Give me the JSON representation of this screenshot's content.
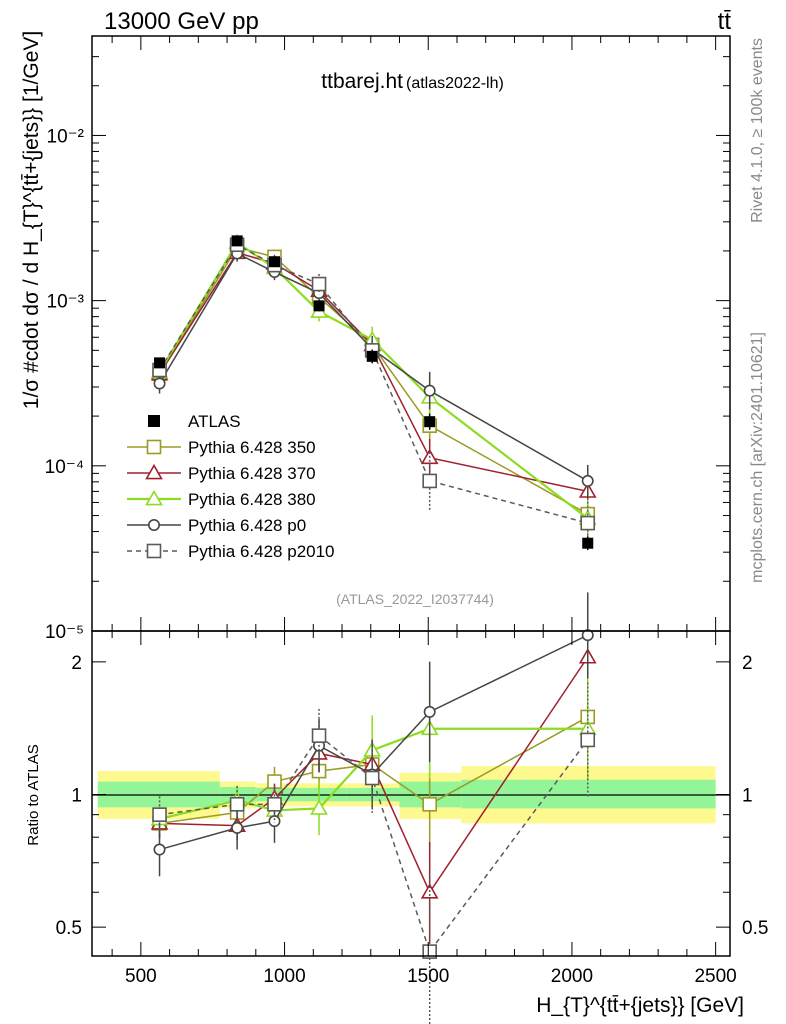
{
  "header": {
    "left": "13000 GeV pp",
    "right": "tt̄"
  },
  "side_labels": {
    "rivet": "Rivet 4.1.0, ≥ 100k events",
    "mcplots": "mcplots.cern.ch [arXiv:2401.10621]"
  },
  "chart_data": {
    "type": "line",
    "title": "ttbarej.ht",
    "subtitle": "(atlas2022-lh)",
    "watermark": "(ATLAS_2022_I2037744)",
    "ylabel_main": "1/σ #cdot dσ / d H_{T}^{tt̄+{jets}} [1/GeV]",
    "ylabel_ratio": "Ratio to ATLAS",
    "xlabel": "H_{T}^{tt̄+{jets}} [GeV]",
    "x_range": [
      330,
      2550
    ],
    "x_ticks": [
      500,
      1000,
      1500,
      2000,
      2500
    ],
    "y_main_range": [
      1e-05,
      0.04
    ],
    "y_main_scale": "log",
    "y_main_ticks": [
      {
        "value": 1e-05,
        "label": "10⁻⁵"
      },
      {
        "value": 0.0001,
        "label": "10⁻⁴"
      },
      {
        "value": 0.001,
        "label": "10⁻³"
      },
      {
        "value": 0.01,
        "label": "10⁻²"
      }
    ],
    "y_ratio_range": [
      0.43,
      2.35
    ],
    "y_ratio_scale": "log",
    "y_ratio_ticks": [
      0.5,
      1,
      2
    ],
    "bin_edges": [
      350,
      775,
      900,
      1035,
      1215,
      1400,
      1615,
      2500
    ],
    "ratio_bands": {
      "inner": [
        [
          0.935,
          1.07
        ],
        [
          0.96,
          1.04
        ],
        [
          0.965,
          1.035
        ],
        [
          0.965,
          1.035
        ],
        [
          0.965,
          1.035
        ],
        [
          0.935,
          1.07
        ],
        [
          0.93,
          1.08
        ]
      ],
      "outer": [
        [
          0.88,
          1.13
        ],
        [
          0.93,
          1.07
        ],
        [
          0.94,
          1.06
        ],
        [
          0.94,
          1.06
        ],
        [
          0.94,
          1.06
        ],
        [
          0.88,
          1.12
        ],
        [
          0.86,
          1.16
        ]
      ]
    },
    "x": [
      565,
      835,
      965,
      1120,
      1305,
      1505,
      2055
    ],
    "series": [
      {
        "name": "ATLAS",
        "color": "#000000",
        "marker": "filled-square",
        "dashed": false,
        "values": [
          0.00042,
          0.0023,
          0.00172,
          0.00093,
          0.00046,
          0.000185,
          3.4e-05
        ],
        "errors": [
          0.06,
          0.06,
          0.06,
          0.08,
          0.1,
          0.12,
          0.1
        ]
      },
      {
        "name": "Pythia 6.428 350",
        "color": "#9b9b24",
        "marker": "open-square",
        "dashed": false,
        "values": [
          0.00036,
          0.0021,
          0.00184,
          0.00105,
          0.00054,
          0.000175,
          5.1e-05
        ],
        "errors": [
          0.08,
          0.08,
          0.08,
          0.1,
          0.15,
          0.25,
          0.3
        ],
        "ratio": [
          0.86,
          0.91,
          1.07,
          1.13,
          1.17,
          0.95,
          1.5
        ]
      },
      {
        "name": "Pythia 6.428 370",
        "color": "#a0202e",
        "marker": "open-triangle",
        "dashed": false,
        "values": [
          0.00036,
          0.00195,
          0.00168,
          0.00115,
          0.00054,
          0.000112,
          7e-05
        ],
        "errors": [
          0.08,
          0.08,
          0.08,
          0.1,
          0.15,
          0.3,
          0.3
        ],
        "ratio": [
          0.86,
          0.85,
          0.98,
          1.24,
          1.17,
          0.6,
          2.05
        ]
      },
      {
        "name": "Pythia 6.428 380",
        "color": "#8cdc20",
        "marker": "open-triangle",
        "dashed": false,
        "values": [
          0.00037,
          0.00224,
          0.00158,
          0.00086,
          0.00058,
          0.00026,
          4.8e-05
        ],
        "errors": [
          0.08,
          0.08,
          0.08,
          0.15,
          0.2,
          0.3,
          0.3
        ],
        "ratio": [
          0.88,
          0.97,
          0.92,
          0.93,
          1.26,
          1.41,
          1.41
        ]
      },
      {
        "name": "Pythia 6.428 p0",
        "color": "#464646",
        "marker": "open-circle",
        "dashed": false,
        "values": [
          0.000315,
          0.00193,
          0.00149,
          0.00111,
          0.00051,
          0.000285,
          8.1e-05
        ],
        "errors": [
          0.15,
          0.12,
          0.12,
          0.15,
          0.2,
          0.3,
          0.25
        ],
        "ratio": [
          0.75,
          0.84,
          0.87,
          1.29,
          1.11,
          1.54,
          2.3
        ]
      },
      {
        "name": "Pythia 6.428 p2010",
        "color": "#5a5a5a",
        "marker": "open-square",
        "dashed": true,
        "values": [
          0.00038,
          0.00218,
          0.00164,
          0.00126,
          0.0005,
          8.1e-05,
          4.5e-05
        ],
        "errors": [
          0.1,
          0.1,
          0.1,
          0.15,
          0.2,
          0.5,
          0.35
        ],
        "ratio": [
          0.9,
          0.95,
          0.95,
          1.36,
          1.09,
          0.44,
          1.33
        ]
      }
    ]
  }
}
